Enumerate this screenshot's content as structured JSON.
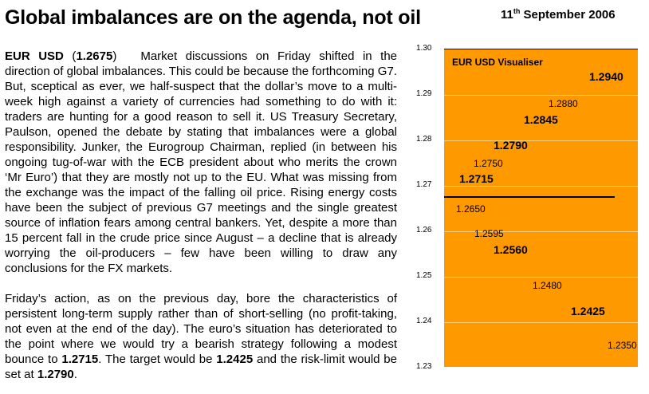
{
  "header": {
    "headline": "Global imbalances are on the agenda, not oil",
    "date_day": "11",
    "date_suffix": "th",
    "date_rest": " September 2006"
  },
  "article": {
    "pair": "EUR USD",
    "spot_open": " (",
    "spot": "1.2675",
    "spot_close": ")",
    "p1": "Market discussions on Friday shifted in the direction of global imbalances. This could be because the forthcoming G7. But, sceptical as ever, we half-suspect that the dollar’s move to a multi-week high against a variety of currencies had something to do with it: traders are hunting for a good reason to sell it. US Treasury Secretary, Paulson, opened the debate by stating that imbalances were a global responsibility. Junker, the Eurogroup Chairman, replied (in between his ongoing tug-of-war with the ECB president about who merits the crown ‘Mr Euro’) that they are mostly not up to the EU. What was missing from the exchange was the impact of the falling oil price. Rising energy costs have been the subject of previous G7 meetings and the single greatest source of inflation fears among central bankers. Yet, despite a more than 15 percent fall in the crude price since August – a decline that is already worrying the oil-producers – few have been willing to draw any conclusions for the FX markets.",
    "p2_a": "Friday’s action, as on the previous day, bore the characteristics of persistent long-term supply rather than of short-selling (no profit-taking, not even at the end of the day). The euro’s situation has deteriorated to the point where we would try a bearish strategy following a modest bounce to ",
    "p2_entry": "1.2715",
    "p2_b": ". The target would be ",
    "p2_target": "1.2425",
    "p2_c": " and the risk-limit would be set at ",
    "p2_limit": "1.2790",
    "p2_d": "."
  },
  "chart_data": {
    "type": "table",
    "title": "EUR USD Visualiser",
    "ylim": [
      1.23,
      1.3
    ],
    "y_ticks": [
      "1.30",
      "1.29",
      "1.28",
      "1.27",
      "1.26",
      "1.25",
      "1.24",
      "1.23"
    ],
    "spot_line": 1.2675,
    "background_color": "#ff9900",
    "levels": [
      {
        "value": 1.294,
        "label": "1.2940",
        "emphasis": "bold"
      },
      {
        "value": 1.288,
        "label": "1.2880",
        "emphasis": "normal"
      },
      {
        "value": 1.2845,
        "label": "1.2845",
        "emphasis": "bold"
      },
      {
        "value": 1.279,
        "label": "1.2790",
        "emphasis": "bold"
      },
      {
        "value": 1.275,
        "label": "1.2750",
        "emphasis": "normal"
      },
      {
        "value": 1.2715,
        "label": "1.2715",
        "emphasis": "bold"
      },
      {
        "value": 1.265,
        "label": "1.2650",
        "emphasis": "normal"
      },
      {
        "value": 1.2595,
        "label": "1.2595",
        "emphasis": "normal"
      },
      {
        "value": 1.256,
        "label": "1.2560",
        "emphasis": "bold"
      },
      {
        "value": 1.248,
        "label": "1.2480",
        "emphasis": "normal"
      },
      {
        "value": 1.2425,
        "label": "1.2425",
        "emphasis": "bold"
      },
      {
        "value": 1.235,
        "label": "1.2350",
        "emphasis": "normal"
      }
    ]
  }
}
